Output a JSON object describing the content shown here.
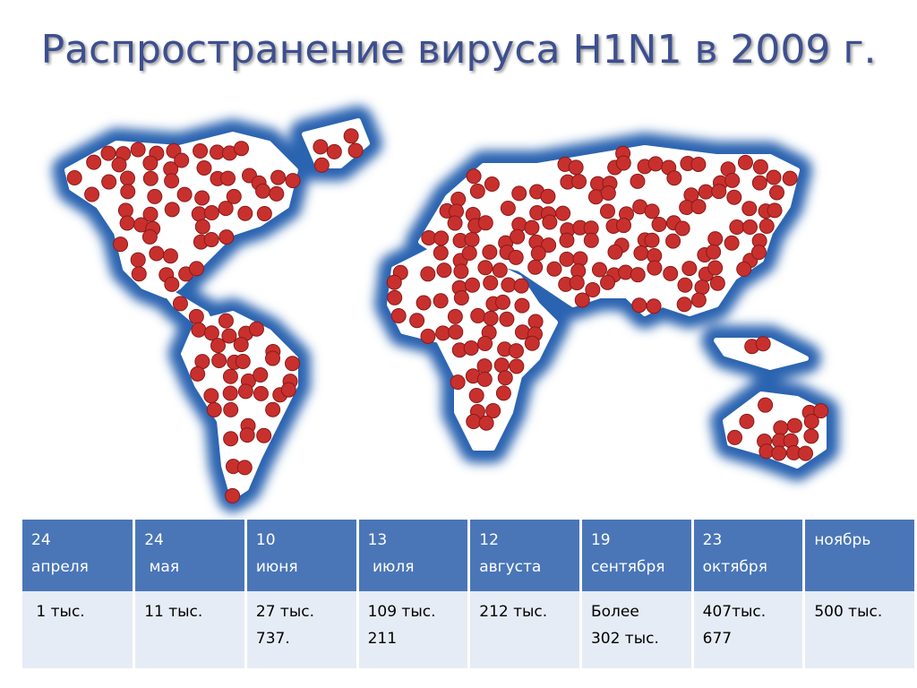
{
  "title": "Распространение вируса H1N1 в 2009 г.",
  "table": {
    "header": [
      {
        "lines": [
          "24",
          "апреля"
        ]
      },
      {
        "lines": [
          "24",
          " мая"
        ]
      },
      {
        "lines": [
          "10",
          "июня"
        ]
      },
      {
        "lines": [
          "13",
          " июля"
        ]
      },
      {
        "lines": [
          "12",
          "августа"
        ]
      },
      {
        "lines": [
          "19",
          "сентября"
        ]
      },
      {
        "lines": [
          "23",
          "октября"
        ]
      },
      {
        "lines": [
          "ноябрь"
        ]
      }
    ],
    "rows": [
      [
        {
          "lines": [
            " 1 тыс."
          ]
        },
        {
          "lines": [
            "11 тыс."
          ]
        },
        {
          "lines": [
            "27 тыс.",
            "737."
          ]
        },
        {
          "lines": [
            "109 тыс.",
            "211"
          ]
        },
        {
          "lines": [
            "212 тыс."
          ]
        },
        {
          "lines": [
            "Более",
            "302 тыс."
          ]
        },
        {
          "lines": [
            "407тыс.",
            "677"
          ]
        },
        {
          "lines": [
            "500 тыс."
          ]
        }
      ]
    ]
  }
}
